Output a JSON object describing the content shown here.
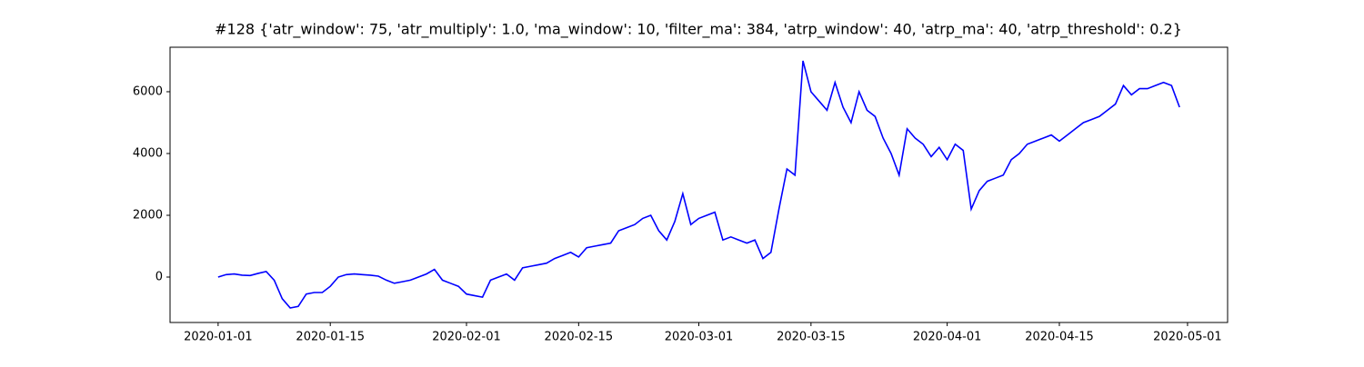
{
  "chart_data": {
    "type": "line",
    "title": "#128 {'atr_window': 75, 'atr_multiply': 1.0, 'ma_window': 10, 'filter_ma': 384, 'atrp_window': 40, 'atrp_ma': 40, 'atrp_threshold': 0.2}",
    "x": [
      "2020-01-01",
      "2020-01-02",
      "2020-01-03",
      "2020-01-04",
      "2020-01-05",
      "2020-01-06",
      "2020-01-07",
      "2020-01-08",
      "2020-01-09",
      "2020-01-10",
      "2020-01-11",
      "2020-01-12",
      "2020-01-13",
      "2020-01-14",
      "2020-01-15",
      "2020-01-16",
      "2020-01-17",
      "2020-01-18",
      "2020-01-19",
      "2020-01-20",
      "2020-01-21",
      "2020-01-22",
      "2020-01-23",
      "2020-01-24",
      "2020-01-25",
      "2020-01-26",
      "2020-01-27",
      "2020-01-28",
      "2020-01-29",
      "2020-01-30",
      "2020-01-31",
      "2020-02-01",
      "2020-02-02",
      "2020-02-03",
      "2020-02-04",
      "2020-02-05",
      "2020-02-06",
      "2020-02-07",
      "2020-02-08",
      "2020-02-09",
      "2020-02-10",
      "2020-02-11",
      "2020-02-12",
      "2020-02-13",
      "2020-02-14",
      "2020-02-15",
      "2020-02-16",
      "2020-02-17",
      "2020-02-18",
      "2020-02-19",
      "2020-02-20",
      "2020-02-21",
      "2020-02-22",
      "2020-02-23",
      "2020-02-24",
      "2020-02-25",
      "2020-02-26",
      "2020-02-27",
      "2020-02-28",
      "2020-02-29",
      "2020-03-01",
      "2020-03-02",
      "2020-03-03",
      "2020-03-04",
      "2020-03-05",
      "2020-03-06",
      "2020-03-07",
      "2020-03-08",
      "2020-03-09",
      "2020-03-10",
      "2020-03-11",
      "2020-03-12",
      "2020-03-13",
      "2020-03-14",
      "2020-03-15",
      "2020-03-16",
      "2020-03-17",
      "2020-03-18",
      "2020-03-19",
      "2020-03-20",
      "2020-03-21",
      "2020-03-22",
      "2020-03-23",
      "2020-03-24",
      "2020-03-25",
      "2020-03-26",
      "2020-03-27",
      "2020-03-28",
      "2020-03-29",
      "2020-03-30",
      "2020-03-31",
      "2020-04-01",
      "2020-04-02",
      "2020-04-03",
      "2020-04-04",
      "2020-04-05",
      "2020-04-06",
      "2020-04-07",
      "2020-04-08",
      "2020-04-09",
      "2020-04-10",
      "2020-04-11",
      "2020-04-12",
      "2020-04-13",
      "2020-04-14",
      "2020-04-15",
      "2020-04-16",
      "2020-04-17",
      "2020-04-18",
      "2020-04-19",
      "2020-04-20",
      "2020-04-21",
      "2020-04-22",
      "2020-04-23",
      "2020-04-24",
      "2020-04-25",
      "2020-04-26",
      "2020-04-27",
      "2020-04-28",
      "2020-04-29",
      "2020-04-30"
    ],
    "series": [
      {
        "color": "#0000ff",
        "values": [
          0,
          80,
          100,
          60,
          50,
          120,
          180,
          -100,
          -700,
          -1000,
          -950,
          -550,
          -500,
          -500,
          -300,
          0,
          80,
          100,
          80,
          60,
          30,
          -100,
          -200,
          -150,
          -100,
          0,
          100,
          250,
          -100,
          -200,
          -300,
          -550,
          -600,
          -650,
          -100,
          0,
          100,
          -100,
          300,
          350,
          400,
          450,
          600,
          700,
          800,
          650,
          950,
          1000,
          1050,
          1100,
          1500,
          1600,
          1700,
          1900,
          2000,
          1500,
          1200,
          1800,
          2700,
          1700,
          1900,
          2000,
          2100,
          1200,
          1300,
          1200,
          1100,
          1200,
          600,
          800,
          2200,
          3500,
          3300,
          7000,
          6000,
          5700,
          5400,
          6300,
          5500,
          5000,
          6000,
          5400,
          5200,
          4500,
          4000,
          3300,
          4800,
          4500,
          4300,
          3900,
          4200,
          3800,
          4300,
          4100,
          2200,
          2800,
          3100,
          3200,
          3300,
          3800,
          4000,
          4300,
          4400,
          4500,
          4600,
          4400,
          4600,
          4800,
          5000,
          5100,
          5200,
          5400,
          5600,
          6200,
          5900,
          6100,
          6100,
          6200,
          6300,
          6200,
          5500
        ]
      }
    ],
    "xlim": [
      "2019-12-26",
      "2020-05-06"
    ],
    "xticks": [
      "2020-01-01",
      "2020-01-15",
      "2020-02-01",
      "2020-02-15",
      "2020-03-01",
      "2020-03-15",
      "2020-04-01",
      "2020-04-15",
      "2020-05-01"
    ],
    "ylim": [
      -1470,
      7440
    ],
    "yticks": [
      0,
      2000,
      4000,
      6000
    ]
  }
}
